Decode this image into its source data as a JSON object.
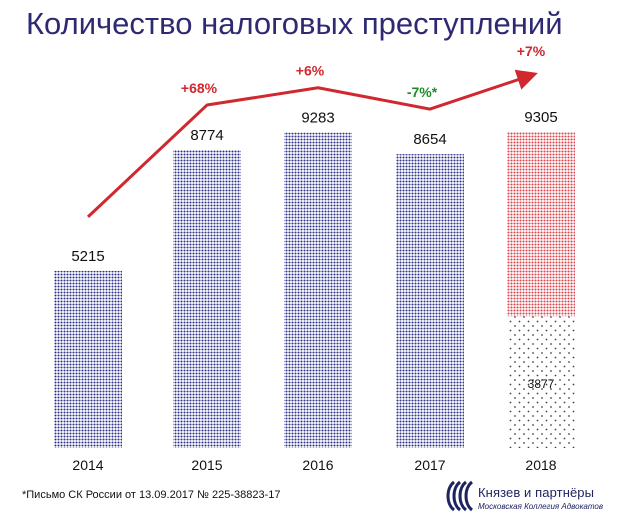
{
  "title": "Количество налоговых преступлений",
  "footnote": "*Письмо СК России от 13.09.2017 № 225-38823-17",
  "logo": {
    "name": "Князев и партнёры",
    "subtitle": "Московская Коллегия Адвокатов"
  },
  "chart_data": {
    "type": "bar",
    "categories": [
      "2014",
      "2015",
      "2016",
      "2017",
      "2018"
    ],
    "values": [
      5215,
      8774,
      9283,
      8654,
      9305
    ],
    "sub_values": [
      null,
      null,
      null,
      null,
      3877
    ],
    "value_labels": [
      "5215",
      "8774",
      "9283",
      "8654",
      "9305"
    ],
    "sub_value_labels": [
      "",
      "",
      "",
      "",
      "3877"
    ],
    "ylim": [
      0,
      9305
    ],
    "grid": false,
    "legend": "none",
    "trend": {
      "labels": [
        "",
        "+68%",
        "+6%",
        "-7%*",
        "+7%"
      ],
      "colors": [
        "#d0282e",
        "#d0282e",
        "#d0282e",
        "#1f8a2a",
        "#d0282e"
      ]
    },
    "colors": {
      "bar": "#2c2f8c",
      "bar_highlight": "#d9434a",
      "bar_base_dots": "#444444",
      "trend_line": "#d0282e",
      "title": "#2d2a73"
    }
  }
}
